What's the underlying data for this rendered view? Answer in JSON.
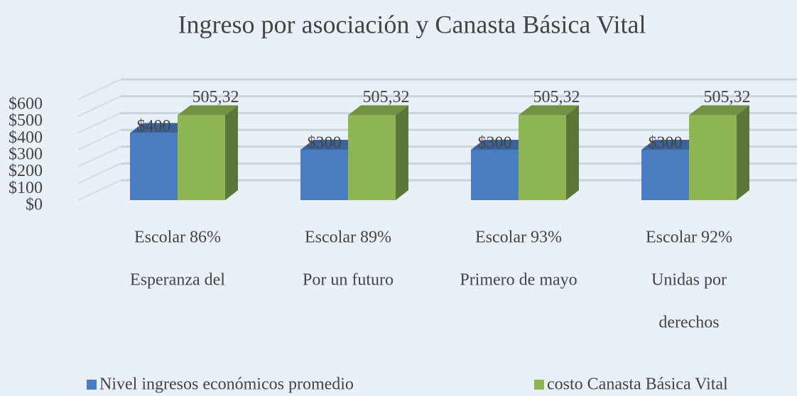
{
  "chart_data": {
    "type": "bar3d",
    "title": "Ingreso por asociación y Canasta Básica Vital",
    "categories": [
      [
        "Escolar 86%",
        "Esperanza del"
      ],
      [
        "Escolar 89%",
        "Por un futuro"
      ],
      [
        "Escolar 93%",
        "Primero de mayo"
      ],
      [
        "Escolar 92%",
        "Unidas por",
        "derechos"
      ]
    ],
    "series": [
      {
        "name": "Nivel ingresos económicos promedio",
        "color": "#4a7cc0",
        "values": [
          400,
          300,
          300,
          300
        ],
        "value_labels": [
          "$400",
          "$300",
          "$300",
          "$300"
        ]
      },
      {
        "name": "costo Canasta Básica Vital",
        "color": "#8db554",
        "values": [
          505.32,
          505.32,
          505.32,
          505.32
        ],
        "value_labels": [
          "505,32",
          "505,32",
          "505,32",
          "505,32"
        ]
      }
    ],
    "ylim": [
      0,
      600
    ],
    "yticks": [
      {
        "value": 0,
        "label": "$0"
      },
      {
        "value": 100,
        "label": "$100"
      },
      {
        "value": 200,
        "label": "$200"
      },
      {
        "value": 300,
        "label": "$300"
      },
      {
        "value": 400,
        "label": "$400"
      },
      {
        "value": 500,
        "label": "$500"
      },
      {
        "value": 600,
        "label": "$600"
      }
    ],
    "grid": true,
    "legend": "bottom"
  }
}
